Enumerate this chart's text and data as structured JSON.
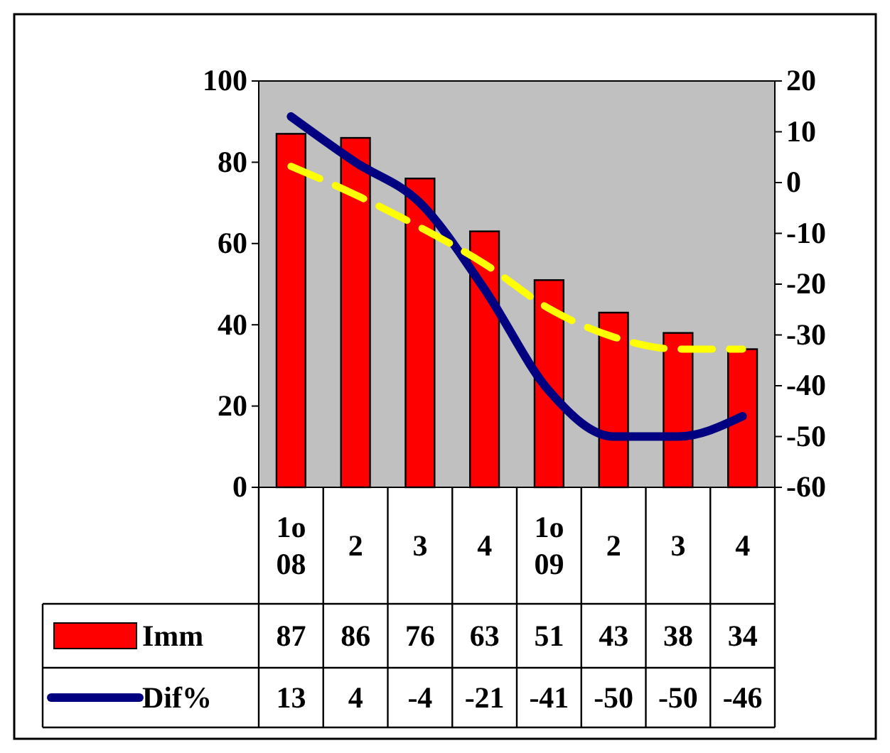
{
  "chart_data": {
    "type": "bar",
    "categories": [
      "1o 08",
      "2",
      "3",
      "4",
      "1o 09",
      "2",
      "3",
      "4"
    ],
    "series": [
      {
        "name": "Imm",
        "color": "#ff0000",
        "values": [
          87,
          86,
          76,
          63,
          51,
          43,
          38,
          34
        ],
        "value_labels": [
          "87",
          "86",
          "76",
          "63",
          "51",
          "43",
          "38",
          "34"
        ]
      },
      {
        "name": "Dif%",
        "type": "line",
        "axis": "y2",
        "color": "#000080",
        "values": [
          13,
          4,
          -4,
          -21,
          -41,
          -50,
          -50,
          -46
        ],
        "value_labels": [
          "13",
          "4",
          "-4",
          "-21",
          "-41",
          "-50",
          "-50",
          "-46"
        ]
      },
      {
        "type": "line",
        "color": "#ffff00",
        "line_style": "dashed",
        "values": [
          79,
          72,
          64,
          55,
          44,
          37,
          34,
          34
        ]
      }
    ],
    "ylim": [
      0,
      100
    ],
    "yticks": [
      0,
      20,
      40,
      60,
      80,
      100
    ],
    "y2lim": [
      -60,
      20
    ],
    "y2ticks": [
      -60,
      -50,
      -40,
      -30,
      -20,
      -10,
      0,
      10,
      20
    ],
    "grid": false,
    "legend": "bottom left"
  }
}
